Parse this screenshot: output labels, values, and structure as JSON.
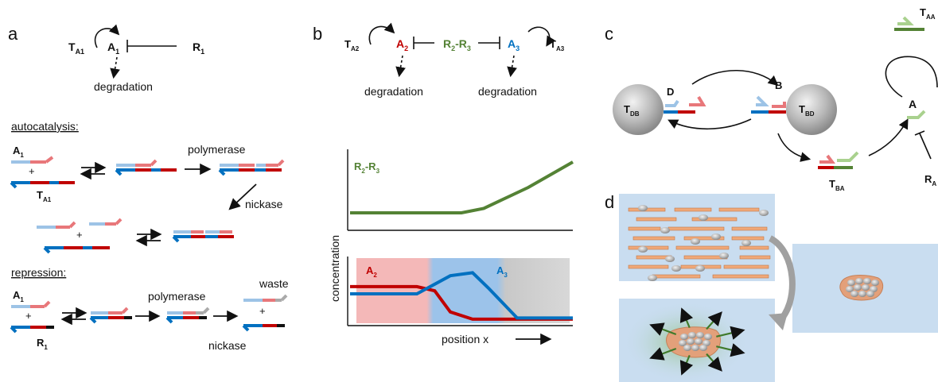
{
  "panels": {
    "a": {
      "label": "a",
      "top": {
        "t_a1": "T",
        "t_a1_sub": "A1",
        "a1": "A",
        "a1_sub": "1",
        "r1": "R",
        "r1_sub": "1",
        "degradation": "degradation"
      },
      "autocatalysis": {
        "heading": "autocatalysis:",
        "a1": "A",
        "a1_sub": "1",
        "plus1": "+",
        "t_a1": "T",
        "t_a1_sub": "A1",
        "polymerase": "polymerase",
        "nickase": "nickase",
        "plus2": "+"
      },
      "repression": {
        "heading": "repression:",
        "a1": "A",
        "a1_sub": "1",
        "plus1": "+",
        "r1": "R",
        "r1_sub": "1",
        "polymerase": "polymerase",
        "waste": "waste",
        "plus2": "+",
        "nickase": "nickase"
      }
    },
    "b": {
      "label": "b",
      "top": {
        "t_a2": "T",
        "t_a2_sub": "A2",
        "a2": "A",
        "a2_sub": "2",
        "r2r3": "R",
        "r2r3_sub1": "2",
        "r2r3_dash": "-R",
        "r2r3_sub2": "3",
        "a3": "A",
        "a3_sub": "3",
        "t_a3": "T",
        "t_a3_sub": "A3",
        "degradation_left": "degradation",
        "degradation_right": "degradation"
      },
      "upper_plot_label": "R",
      "upper_plot_sub1": "2",
      "upper_plot_dash": "-R",
      "upper_plot_sub2": "3",
      "lower_a2": "A",
      "lower_a2_sub": "2",
      "lower_a3": "A",
      "lower_a3_sub": "3",
      "ylabel": "concentration",
      "xlabel": "position x"
    },
    "c": {
      "label": "c",
      "t_db": "T",
      "t_db_sub": "DB",
      "t_bd": "T",
      "t_bd_sub": "BD",
      "d": "D",
      "b": "B",
      "a": "A",
      "t_aa": "T",
      "t_aa_sub": "AA",
      "t_ba": "T",
      "t_ba_sub": "BA",
      "r_a": "R",
      "r_a_sub": "A"
    },
    "d": {
      "label": "d"
    }
  },
  "colors": {
    "red": "#c00000",
    "blue": "#0070c0",
    "light_red": "#e8777a",
    "light_blue": "#9dc3e6",
    "green": "#548235",
    "light_green": "#a9d18e",
    "bg_blue": "#c9ddf0",
    "orange": "#f0a878"
  },
  "chart_data": {
    "type": "line",
    "title": "",
    "xlabel": "position x",
    "ylabel": "concentration",
    "series": [
      {
        "name": "R2-R3",
        "x": [
          0,
          0.3,
          0.5,
          0.6,
          0.8,
          1.0
        ],
        "values": [
          0.05,
          0.05,
          0.05,
          0.12,
          0.45,
          0.85
        ]
      },
      {
        "name": "A2",
        "x": [
          0,
          0.3,
          0.38,
          0.45,
          0.55,
          1.0
        ],
        "values": [
          0.62,
          0.62,
          0.55,
          0.2,
          0.08,
          0.08
        ]
      },
      {
        "name": "A3",
        "x": [
          0,
          0.3,
          0.45,
          0.55,
          0.62,
          0.75,
          1.0
        ],
        "values": [
          0.5,
          0.5,
          0.8,
          0.85,
          0.6,
          0.1,
          0.1
        ]
      }
    ]
  }
}
